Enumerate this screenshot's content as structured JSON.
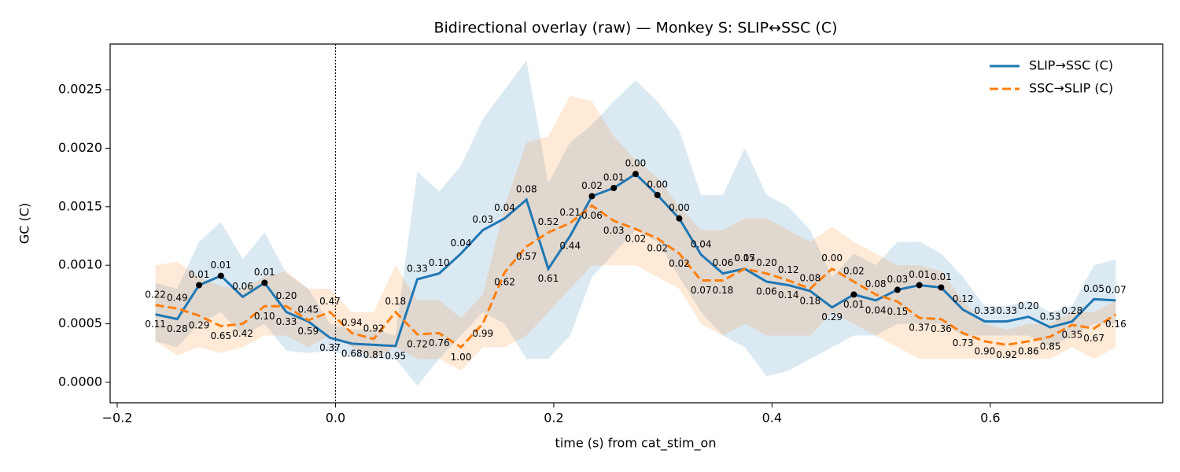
{
  "chart_data": {
    "type": "line",
    "title": "Bidirectional overlay (raw) — Monkey S: SLIP↔SSC (C)",
    "xlabel": "time (s) from cat_stim_on",
    "ylabel": "GC (C)",
    "x": [
      -0.165,
      -0.145,
      -0.125,
      -0.105,
      -0.085,
      -0.065,
      -0.045,
      -0.025,
      -0.005,
      0.015,
      0.035,
      0.055,
      0.075,
      0.095,
      0.115,
      0.135,
      0.155,
      0.175,
      0.195,
      0.215,
      0.235,
      0.255,
      0.275,
      0.295,
      0.315,
      0.335,
      0.355,
      0.375,
      0.395,
      0.415,
      0.435,
      0.455,
      0.475,
      0.495,
      0.515,
      0.535,
      0.555,
      0.575,
      0.595,
      0.615,
      0.635,
      0.655,
      0.675,
      0.695,
      0.715
    ],
    "xlim": [
      -0.2065,
      0.758
    ],
    "ylim": [
      -0.000175,
      0.00289
    ],
    "xticks": [
      {
        "value": -0.2,
        "label": "−0.2"
      },
      {
        "value": 0,
        "label": "0.0"
      },
      {
        "value": 0.2,
        "label": "0.2"
      },
      {
        "value": 0.4,
        "label": "0.4"
      },
      {
        "value": 0.6,
        "label": "0.6"
      }
    ],
    "yticks": [
      {
        "value": 0,
        "label": "0.0000"
      },
      {
        "value": 0.0005,
        "label": "0.0005"
      },
      {
        "value": 0.001,
        "label": "0.0010"
      },
      {
        "value": 0.0015,
        "label": "0.0015"
      },
      {
        "value": 0.002,
        "label": "0.0020"
      },
      {
        "value": 0.0025,
        "label": "0.0025"
      }
    ],
    "vline": 0,
    "legend": "upper right",
    "series": [
      {
        "name": "SLIP→SSC (C)",
        "color": "#1f77b4",
        "dash": "solid",
        "values": [
          0.00058,
          0.00054,
          0.00083,
          0.00091,
          0.00073,
          0.00085,
          0.0006,
          0.00052,
          0.00038,
          0.00033,
          0.00032,
          0.00031,
          0.00088,
          0.00093,
          0.0011,
          0.0013,
          0.0014,
          0.00156,
          0.00097,
          0.00125,
          0.00159,
          0.00166,
          0.00178,
          0.0016,
          0.0014,
          0.00109,
          0.00093,
          0.00097,
          0.00086,
          0.00083,
          0.00078,
          0.00064,
          0.00075,
          0.0007,
          0.00079,
          0.00083,
          0.00081,
          0.00062,
          0.00052,
          0.00052,
          0.00056,
          0.00047,
          0.00052,
          0.00071,
          0.0007
        ],
        "lower": [
          0.00035,
          0.0003,
          0.0005,
          0.0006,
          0.0004,
          0.0005,
          0.00027,
          0.00025,
          0.00027,
          0.00022,
          0.0002,
          0.0002,
          -3e-05,
          0.0002,
          0.0004,
          0.0006,
          0.0005,
          0.0002,
          0.0002,
          0.0004,
          0.0009,
          0.0011,
          0.0013,
          0.0012,
          0.0009,
          0.0006,
          0.0004,
          0.0003,
          5e-05,
          0.0001,
          0.0002,
          0.0003,
          0.0004,
          0.0004,
          0.0005,
          0.0005,
          0.0005,
          0.0004,
          0.0004,
          0.0004,
          0.0004,
          0.0003,
          0.0004,
          0.0005,
          0.0005
        ],
        "upper": [
          0.00085,
          0.0008,
          0.0012,
          0.00137,
          0.00105,
          0.00128,
          0.00093,
          0.0008,
          0.0005,
          0.00045,
          0.00045,
          0.0004,
          0.0018,
          0.00163,
          0.00185,
          0.00225,
          0.0025,
          0.00275,
          0.0017,
          0.00205,
          0.0022,
          0.0024,
          0.00258,
          0.0024,
          0.00215,
          0.0016,
          0.0016,
          0.002,
          0.0016,
          0.0015,
          0.0013,
          0.0009,
          0.0011,
          0.001,
          0.0012,
          0.0012,
          0.0011,
          0.0009,
          0.00065,
          0.00065,
          0.0007,
          0.0006,
          0.00065,
          0.001,
          0.00105
        ],
        "labels": [
          "0.11",
          "0.28",
          "0.01",
          "0.01",
          "0.06",
          "0.01",
          "0.33",
          "0.59",
          "0.37",
          "0.68",
          "0.81",
          "0.95",
          "0.33",
          "0.10",
          "0.04",
          "0.03",
          "0.04",
          "0.08",
          "0.61",
          "0.44",
          "0.02",
          "0.01",
          "0.00",
          "0.00",
          "0.00",
          "0.04",
          "0.06",
          "0.15",
          "0.06",
          "0.14",
          "0.18",
          "0.29",
          "0.01",
          "0.04",
          "0.03",
          "0.01",
          "0.01",
          "0.12",
          "0.33",
          "0.33",
          "0.20",
          "0.53",
          "0.28",
          "0.05",
          "0.07"
        ],
        "significant": [
          false,
          false,
          true,
          true,
          false,
          true,
          false,
          false,
          false,
          false,
          false,
          false,
          false,
          false,
          false,
          false,
          false,
          false,
          false,
          false,
          true,
          true,
          true,
          true,
          true,
          false,
          false,
          false,
          false,
          false,
          false,
          false,
          true,
          false,
          true,
          true,
          true,
          false,
          false,
          false,
          false,
          false,
          false,
          false,
          false
        ]
      },
      {
        "name": "SSC→SLIP (C)",
        "color": "#ff7f0e",
        "dash": "dashed",
        "values": [
          0.00066,
          0.00063,
          0.00057,
          0.00048,
          0.0005,
          0.00065,
          0.00065,
          0.00053,
          0.0006,
          0.00042,
          0.00037,
          0.0006,
          0.00041,
          0.00042,
          0.0003,
          0.0005,
          0.00094,
          0.00116,
          0.00128,
          0.00136,
          0.00151,
          0.00138,
          0.00131,
          0.00123,
          0.0011,
          0.00087,
          0.00087,
          0.00097,
          0.00093,
          0.00087,
          0.0008,
          0.00097,
          0.00086,
          0.00075,
          0.00069,
          0.00055,
          0.00054,
          0.00042,
          0.00035,
          0.00032,
          0.00035,
          0.00039,
          0.00049,
          0.00046,
          0.00058
        ],
        "lower": [
          0.00035,
          0.00023,
          0.0003,
          0.00025,
          0.0003,
          0.0004,
          0.0004,
          0.0003,
          0.0004,
          0.0003,
          0.0002,
          0.0003,
          0.0002,
          0.0002,
          0.0001,
          0.0003,
          0.0003,
          0.0004,
          0.0006,
          0.0008,
          0.001,
          0.001,
          0.001,
          0.0009,
          0.0008,
          0.0005,
          0.0004,
          0.0005,
          0.0004,
          0.0004,
          0.0004,
          0.0006,
          0.0005,
          0.0004,
          0.0003,
          0.0002,
          0.0002,
          0.0002,
          0.0002,
          0.0002,
          0.0002,
          0.0002,
          0.0003,
          0.0002,
          0.0003
        ],
        "upper": [
          0.001,
          0.00103,
          0.0009,
          0.00082,
          0.0008,
          0.0009,
          0.00095,
          0.0008,
          0.0008,
          0.0006,
          0.0006,
          0.001,
          0.0007,
          0.0007,
          0.00055,
          0.00075,
          0.0015,
          0.00205,
          0.0021,
          0.00245,
          0.0024,
          0.0021,
          0.0019,
          0.00175,
          0.0015,
          0.0013,
          0.0013,
          0.0014,
          0.0014,
          0.0013,
          0.0012,
          0.00133,
          0.0012,
          0.0011,
          0.001,
          0.001,
          0.00095,
          0.0007,
          0.0005,
          0.00045,
          0.0005,
          0.0005,
          0.0006,
          0.0006,
          0.0007
        ],
        "labels": [
          "0.22",
          "0.49",
          "0.29",
          "0.65",
          "0.42",
          "0.10",
          "0.20",
          "0.45",
          "0.47",
          "0.94",
          "0.92",
          "0.18",
          "0.72",
          "0.76",
          "1.00",
          "0.99",
          "0.62",
          "0.57",
          "0.52",
          "0.21",
          "0.06",
          "0.03",
          "0.02",
          "0.02",
          "0.02",
          "0.07",
          "0.18",
          "0.07",
          "0.20",
          "0.12",
          "0.08",
          "0.00",
          "0.02",
          "0.08",
          "0.15",
          "0.37",
          "0.36",
          "0.73",
          "0.90",
          "0.92",
          "0.86",
          "0.85",
          "0.35",
          "0.67",
          "0.16"
        ],
        "significant": [
          false,
          false,
          false,
          false,
          false,
          false,
          false,
          false,
          false,
          false,
          false,
          false,
          false,
          false,
          false,
          false,
          false,
          false,
          false,
          false,
          false,
          false,
          false,
          false,
          false,
          false,
          false,
          false,
          false,
          false,
          false,
          false,
          false,
          false,
          false,
          false,
          false,
          false,
          false,
          false,
          false,
          false,
          false,
          false,
          false
        ]
      }
    ]
  }
}
